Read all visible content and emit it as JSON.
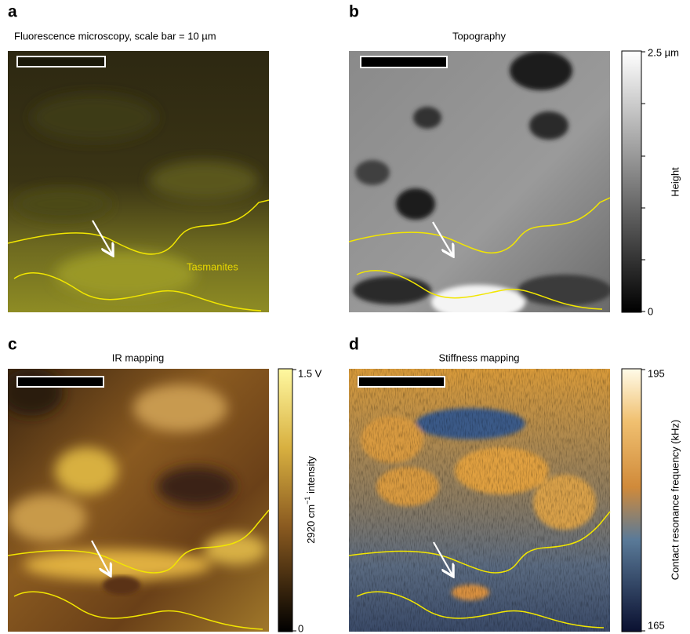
{
  "panels": [
    {
      "label": "a",
      "title": "Fluorescence microscopy, scale bar = 10 µm",
      "annotation": "Tasmanites"
    },
    {
      "label": "b",
      "title": "Topography",
      "colorbar": {
        "max": "2.5 µm",
        "min": "0",
        "label": "Height"
      }
    },
    {
      "label": "c",
      "title": "IR mapping",
      "colorbar": {
        "max": "1.5 V",
        "min": "0",
        "label": [
          "2920 cm",
          "−1",
          " intensity"
        ]
      }
    },
    {
      "label": "d",
      "title": "Stiffness mapping",
      "colorbar": {
        "max": "195",
        "min": "165",
        "label": "Contact resonance frequency (kHz)"
      }
    }
  ]
}
